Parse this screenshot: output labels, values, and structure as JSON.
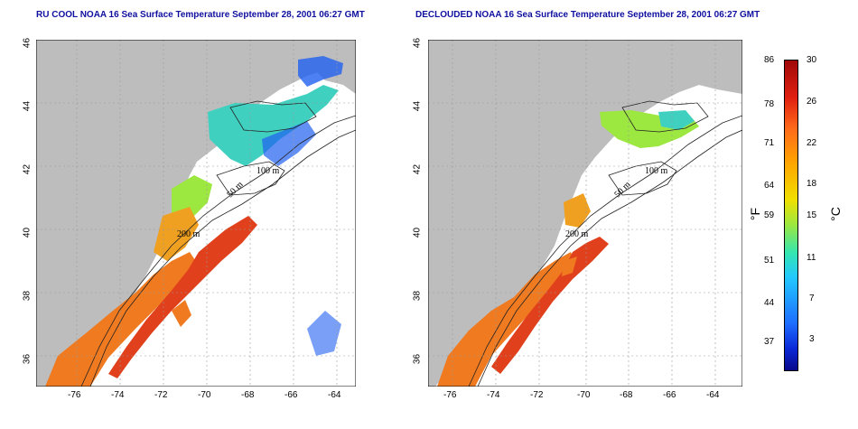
{
  "left_panel": {
    "title": "RU COOL NOAA 16 Sea Surface Temperature September 28, 2001 06:27 GMT"
  },
  "right_panel": {
    "title": "DECLOUDED NOAA 16 Sea Surface Temperature September 28, 2001 06:27 GMT"
  },
  "axes": {
    "lat_ticks": [
      "46",
      "44",
      "42",
      "40",
      "38",
      "36"
    ],
    "lon_ticks": [
      "-76",
      "-74",
      "-72",
      "-70",
      "-68",
      "-66",
      "-64"
    ]
  },
  "contour_labels": [
    "100 m",
    "50 m",
    "200 m",
    "50 m",
    "200 m",
    "100 m"
  ],
  "colorbar": {
    "unit_f": "°F",
    "unit_c": "°C",
    "f_ticks": [
      "86",
      "78",
      "71",
      "64",
      "59",
      "51",
      "44",
      "37"
    ],
    "c_ticks": [
      "30",
      "26",
      "22",
      "18",
      "15",
      "11",
      "7",
      "3"
    ]
  },
  "colors": {
    "land": "#bdbdbd",
    "title": "#1010a0",
    "warm": "#f07a20",
    "hot": "#e0401c",
    "cool": "#40d0c0",
    "cold": "#2060f0"
  }
}
